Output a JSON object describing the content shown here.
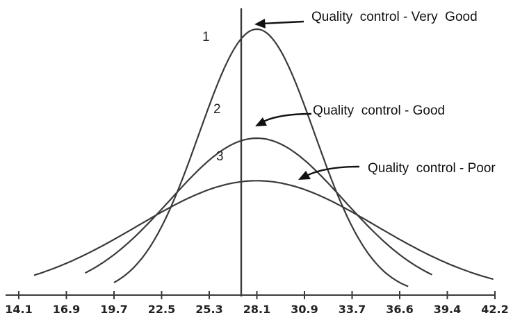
{
  "chart_data": {
    "type": "line",
    "title": "",
    "xlabel": "",
    "ylabel": "",
    "x_ticks": [
      "14.1",
      "16.9",
      "19.7",
      "22.5",
      "25.3",
      "28.1",
      "30.9",
      "33.7",
      "36.6",
      "39.4",
      "42.2"
    ],
    "xlim": [
      14.1,
      42.2
    ],
    "mean": 28.1,
    "grid": false,
    "series": [
      {
        "name": "1",
        "peak_height": 1.0,
        "std_dev": 3.4,
        "x_range": [
          19.7,
          37.0
        ]
      },
      {
        "name": "2",
        "peak_height": 0.59,
        "std_dev": 5.1,
        "x_range": [
          18.0,
          38.4
        ]
      },
      {
        "name": "3",
        "peak_height": 0.43,
        "std_dev": 7.0,
        "x_range": [
          15.0,
          42.0
        ]
      }
    ],
    "annotations": [
      {
        "text": "Quality  control - Very  Good",
        "series": "1"
      },
      {
        "text": "Quality  control - Good",
        "series": "2"
      },
      {
        "text": "Quality  control - Poor",
        "series": "3"
      }
    ]
  }
}
